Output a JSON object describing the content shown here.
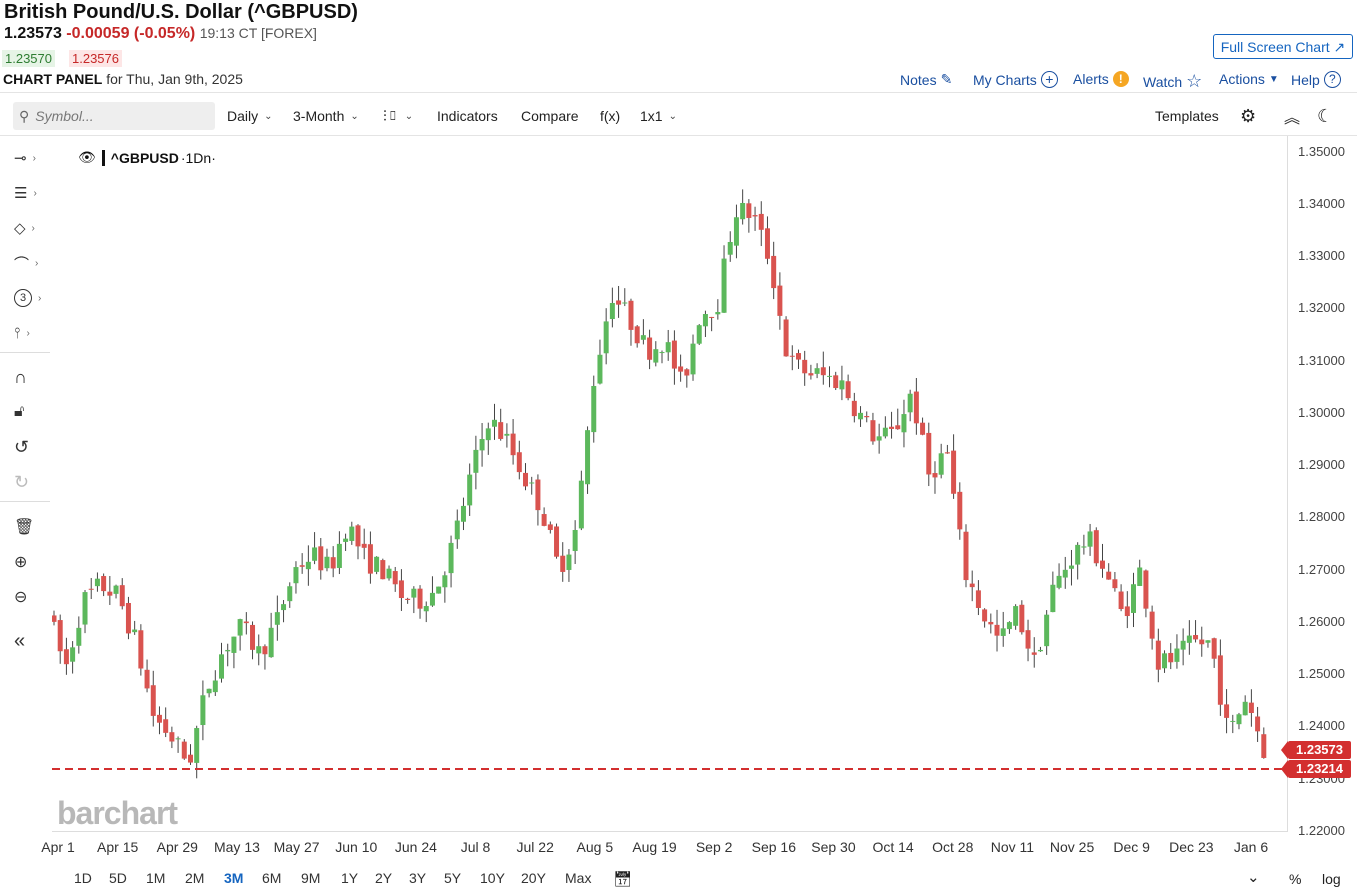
{
  "header": {
    "title": "British Pound/U.S. Dollar (^GBPUSD)",
    "last": "1.23573",
    "change": "-0.00059 (-0.05%)",
    "time": "19:13 CT [FOREX]",
    "bid": "1.23570",
    "ask": "1.23576",
    "panel_label": "CHART PANEL",
    "panel_date": "for Thu, Jan 9th, 2025",
    "fullscreen": "Full Screen Chart"
  },
  "nav": {
    "notes": "Notes",
    "mycharts": "My Charts",
    "alerts": "Alerts",
    "watch": "Watch",
    "actions": "Actions",
    "help": "Help"
  },
  "toolbar": {
    "search_placeholder": "Symbol...",
    "interval": "Daily",
    "period": "3-Month",
    "indicators": "Indicators",
    "compare": "Compare",
    "fx": "f(x)",
    "layout": "1x1",
    "templates": "Templates"
  },
  "legend": {
    "symbol": "^GBPUSD",
    "interval": "·1Dn·"
  },
  "watermark": "barchart",
  "price_tags": {
    "last": "1.23573",
    "line": "1.23214"
  },
  "ranges": [
    "1D",
    "5D",
    "1M",
    "2M",
    "3M",
    "6M",
    "9M",
    "1Y",
    "2Y",
    "3Y",
    "5Y",
    "10Y",
    "20Y",
    "Max"
  ],
  "active_range": "3M",
  "axis_buttons": {
    "percent": "%",
    "log": "log"
  },
  "colors": {
    "up": "#5cb85c",
    "down": "#d9534f",
    "accent": "#1565c0",
    "line": "#d32f2f"
  },
  "chart_data": {
    "type": "candlestick",
    "y_ticks": [
      "1.35000",
      "1.34000",
      "1.33000",
      "1.32000",
      "1.31000",
      "1.30000",
      "1.29000",
      "1.28000",
      "1.27000",
      "1.26000",
      "1.25000",
      "1.24000",
      "1.23000",
      "1.22000"
    ],
    "ylim": [
      1.22,
      1.353
    ],
    "x_labels": [
      "Apr 1",
      "Apr 15",
      "Apr 29",
      "May 13",
      "May 27",
      "Jun 10",
      "Jun 24",
      "Jul 8",
      "Jul 22",
      "Aug 5",
      "Aug 19",
      "Sep 2",
      "Sep 16",
      "Sep 30",
      "Oct 14",
      "Oct 28",
      "Nov 11",
      "Nov 25",
      "Dec 9",
      "Dec 23",
      "Jan 6"
    ],
    "anchors": [
      1.262,
      1.251,
      1.264,
      1.267,
      1.265,
      1.256,
      1.242,
      1.238,
      1.233,
      1.247,
      1.255,
      1.259,
      1.254,
      1.26,
      1.27,
      1.273,
      1.27,
      1.279,
      1.272,
      1.27,
      1.265,
      1.264,
      1.266,
      1.275,
      1.288,
      1.299,
      1.295,
      1.288,
      1.282,
      1.27,
      1.278,
      1.307,
      1.323,
      1.318,
      1.312,
      1.314,
      1.305,
      1.319,
      1.321,
      1.339,
      1.338,
      1.329,
      1.31,
      1.308,
      1.307,
      1.306,
      1.3,
      1.295,
      1.296,
      1.304,
      1.288,
      1.293,
      1.27,
      1.262,
      1.256,
      1.262,
      1.252,
      1.266,
      1.272,
      1.276,
      1.27,
      1.261,
      1.27,
      1.252,
      1.253,
      1.256,
      1.256,
      1.238,
      1.246,
      1.2357
    ]
  }
}
